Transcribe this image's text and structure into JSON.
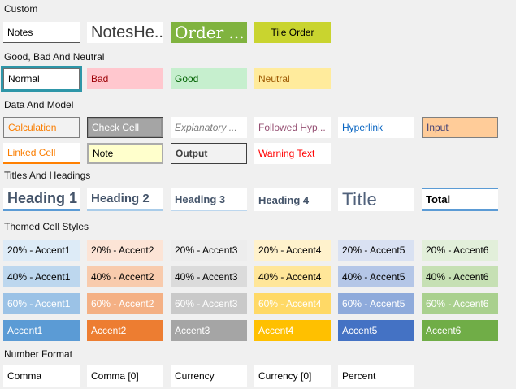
{
  "colors": {
    "page_background": "#F0F0F0",
    "selection_border": "#2E96A8",
    "heading_accent": "#5B9BD5"
  },
  "sections": {
    "custom": {
      "label": "Custom",
      "tiles": [
        {
          "name": "Notes",
          "label": "Notes",
          "bg": "#FFFFFF",
          "fg": "#000000"
        },
        {
          "name": "NotesHead",
          "label": "NotesHe...",
          "bg": "#FFFFFF",
          "fg": "#3B3B3B"
        },
        {
          "name": "Order",
          "label": "Order ...",
          "bg": "#80B33F",
          "fg": "#FFFFFF"
        },
        {
          "name": "Tile Order",
          "label": "Tile Order",
          "bg": "#C9D42F",
          "fg": "#000000"
        }
      ]
    },
    "good_bad_neutral": {
      "label": "Good, Bad And Neutral",
      "tiles": [
        {
          "name": "Normal",
          "label": "Normal",
          "bg": "#FFFFFF",
          "fg": "#000000",
          "selected": true
        },
        {
          "name": "Bad",
          "label": "Bad",
          "bg": "#FFC7CE",
          "fg": "#9C0006"
        },
        {
          "name": "Good",
          "label": "Good",
          "bg": "#C6EFCE",
          "fg": "#006100"
        },
        {
          "name": "Neutral",
          "label": "Neutral",
          "bg": "#FFEB9C",
          "fg": "#9C5700"
        }
      ]
    },
    "data_and_model": {
      "label": "Data And Model",
      "rows": [
        [
          {
            "name": "Calculation",
            "label": "Calculation",
            "bg": "#F2F2F2",
            "fg": "#FA7D00"
          },
          {
            "name": "Check Cell",
            "label": "Check Cell",
            "bg": "#A5A5A5",
            "fg": "#FFFFFF"
          },
          {
            "name": "Explanatory Text",
            "label": "Explanatory ...",
            "bg": "#FFFFFF",
            "fg": "#7F7F7F"
          },
          {
            "name": "Followed Hyperlink",
            "label": "Followed Hyp...",
            "bg": "#FFFFFF",
            "fg": "#954F72"
          },
          {
            "name": "Hyperlink",
            "label": "Hyperlink",
            "bg": "#FFFFFF",
            "fg": "#0563C1"
          },
          {
            "name": "Input",
            "label": "Input",
            "bg": "#FFCC99",
            "fg": "#3F3F76"
          }
        ],
        [
          {
            "name": "Linked Cell",
            "label": "Linked Cell",
            "bg": "#FFFFFF",
            "fg": "#FA7D00"
          },
          {
            "name": "Note",
            "label": "Note",
            "bg": "#FFFFCC",
            "fg": "#000000"
          },
          {
            "name": "Output",
            "label": "Output",
            "bg": "#F2F2F2",
            "fg": "#3F3F3F"
          },
          {
            "name": "Warning Text",
            "label": "Warning Text",
            "bg": "#FFFFFF",
            "fg": "#FF0000"
          }
        ]
      ]
    },
    "titles_and_headings": {
      "label": "Titles And Headings",
      "tiles": [
        {
          "name": "Heading 1",
          "label": "Heading 1",
          "bg": "#FFFFFF",
          "fg": "#44546A"
        },
        {
          "name": "Heading 2",
          "label": "Heading 2",
          "bg": "#FFFFFF",
          "fg": "#44546A"
        },
        {
          "name": "Heading 3",
          "label": "Heading 3",
          "bg": "#FFFFFF",
          "fg": "#44546A"
        },
        {
          "name": "Heading 4",
          "label": "Heading 4",
          "bg": "#FFFFFF",
          "fg": "#44546A"
        },
        {
          "name": "Title",
          "label": "Title",
          "bg": "#FFFFFF",
          "fg": "#50617B"
        },
        {
          "name": "Total",
          "label": "Total",
          "bg": "#FFFFFF",
          "fg": "#000000"
        }
      ]
    },
    "themed": {
      "label": "Themed Cell Styles",
      "rows": [
        [
          {
            "name": "20% - Accent1",
            "label": "20% - Accent1",
            "bg": "#DDEBF7",
            "fg": "#000000"
          },
          {
            "name": "20% - Accent2",
            "label": "20% - Accent2",
            "bg": "#FCE4D6",
            "fg": "#000000"
          },
          {
            "name": "20% - Accent3",
            "label": "20% - Accent3",
            "bg": "#EDEDED",
            "fg": "#000000"
          },
          {
            "name": "20% - Accent4",
            "label": "20% - Accent4",
            "bg": "#FFF2CC",
            "fg": "#000000"
          },
          {
            "name": "20% - Accent5",
            "label": "20% - Accent5",
            "bg": "#D9E1F2",
            "fg": "#000000"
          },
          {
            "name": "20% - Accent6",
            "label": "20% - Accent6",
            "bg": "#E2EFDA",
            "fg": "#000000"
          }
        ],
        [
          {
            "name": "40% - Accent1",
            "label": "40% - Accent1",
            "bg": "#BDD7EE",
            "fg": "#000000"
          },
          {
            "name": "40% - Accent2",
            "label": "40% - Accent2",
            "bg": "#F8CBAD",
            "fg": "#000000"
          },
          {
            "name": "40% - Accent3",
            "label": "40% - Accent3",
            "bg": "#DBDBDB",
            "fg": "#000000"
          },
          {
            "name": "40% - Accent4",
            "label": "40% - Accent4",
            "bg": "#FFE699",
            "fg": "#000000"
          },
          {
            "name": "40% - Accent5",
            "label": "40% - Accent5",
            "bg": "#B4C6E7",
            "fg": "#000000"
          },
          {
            "name": "40% - Accent6",
            "label": "40% - Accent6",
            "bg": "#C6E0B4",
            "fg": "#000000"
          }
        ],
        [
          {
            "name": "60% - Accent1",
            "label": "60% - Accent1",
            "bg": "#9BC2E6",
            "fg": "#FFFFFF"
          },
          {
            "name": "60% - Accent2",
            "label": "60% - Accent2",
            "bg": "#F4B084",
            "fg": "#FFFFFF"
          },
          {
            "name": "60% - Accent3",
            "label": "60% - Accent3",
            "bg": "#C9C9C9",
            "fg": "#FFFFFF"
          },
          {
            "name": "60% - Accent4",
            "label": "60% - Accent4",
            "bg": "#FFD966",
            "fg": "#FFFFFF"
          },
          {
            "name": "60% - Accent5",
            "label": "60% - Accent5",
            "bg": "#8EAADB",
            "fg": "#FFFFFF"
          },
          {
            "name": "60% - Accent6",
            "label": "60% - Accent6",
            "bg": "#A9D08E",
            "fg": "#FFFFFF"
          }
        ],
        [
          {
            "name": "Accent1",
            "label": "Accent1",
            "bg": "#5B9BD5",
            "fg": "#FFFFFF"
          },
          {
            "name": "Accent2",
            "label": "Accent2",
            "bg": "#ED7D31",
            "fg": "#FFFFFF"
          },
          {
            "name": "Accent3",
            "label": "Accent3",
            "bg": "#A5A5A5",
            "fg": "#FFFFFF"
          },
          {
            "name": "Accent4",
            "label": "Accent4",
            "bg": "#FFC000",
            "fg": "#FFFFFF"
          },
          {
            "name": "Accent5",
            "label": "Accent5",
            "bg": "#4472C4",
            "fg": "#FFFFFF"
          },
          {
            "name": "Accent6",
            "label": "Accent6",
            "bg": "#70AD47",
            "fg": "#FFFFFF"
          }
        ]
      ]
    },
    "number_format": {
      "label": "Number Format",
      "tiles": [
        {
          "name": "Comma",
          "label": "Comma",
          "bg": "#FFFFFF",
          "fg": "#000000"
        },
        {
          "name": "Comma [0]",
          "label": "Comma [0]",
          "bg": "#FFFFFF",
          "fg": "#000000"
        },
        {
          "name": "Currency",
          "label": "Currency",
          "bg": "#FFFFFF",
          "fg": "#000000"
        },
        {
          "name": "Currency [0]",
          "label": "Currency [0]",
          "bg": "#FFFFFF",
          "fg": "#000000"
        },
        {
          "name": "Percent",
          "label": "Percent",
          "bg": "#FFFFFF",
          "fg": "#000000"
        }
      ]
    }
  }
}
